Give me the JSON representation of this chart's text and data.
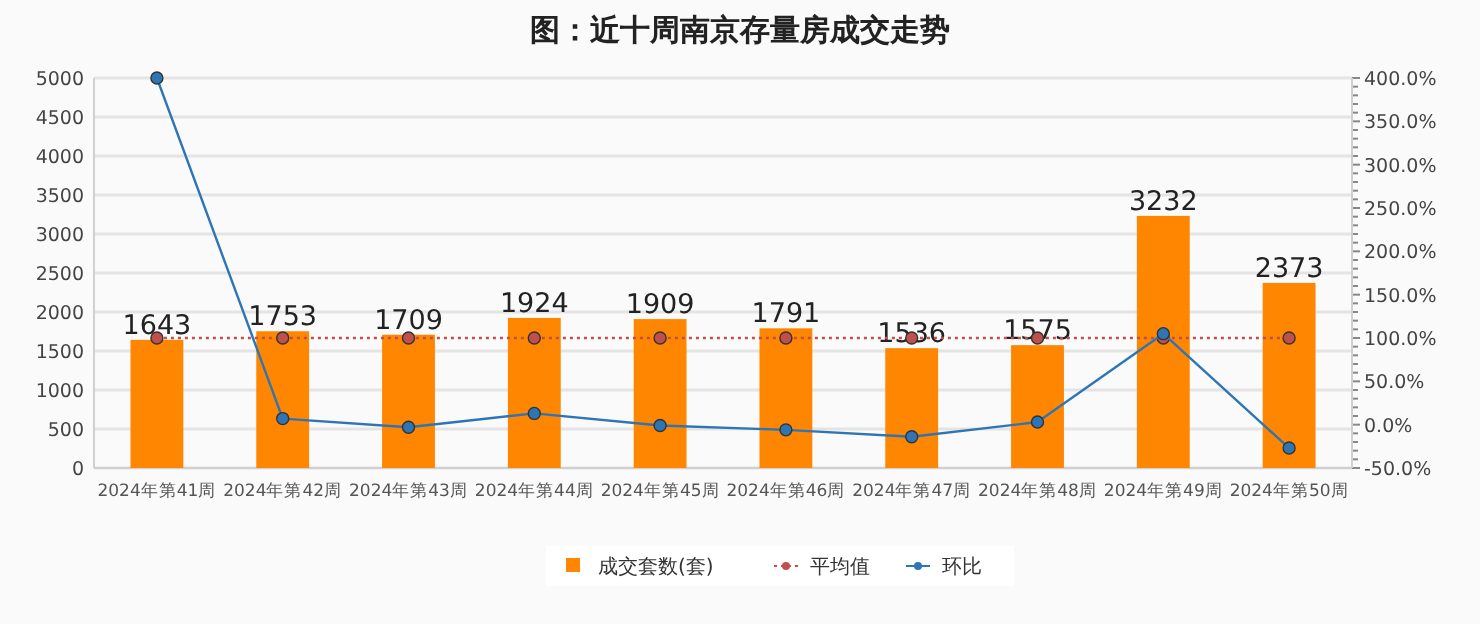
{
  "chart_data": {
    "type": "bar",
    "title": "图：近十周南京存量房成交走势",
    "categories": [
      "2024年第41周",
      "2024年第42周",
      "2024年第43周",
      "2024年第44周",
      "2024年第45周",
      "2024年第46周",
      "2024年第47周",
      "2024年第48周",
      "2024年第49周",
      "2024年第50周"
    ],
    "series": [
      {
        "name": "成交套数(套)",
        "color": "#ff8600",
        "values": [
          1643,
          1753,
          1709,
          1924,
          1909,
          1791,
          1536,
          1575,
          3232,
          2373
        ],
        "value_labels": [
          "1643",
          "1753",
          "1709",
          "1924",
          "1909",
          "1791",
          "1536",
          "1575",
          "3232",
          "2373"
        ]
      },
      {
        "name": "平均值",
        "type": "line",
        "axis": "y2",
        "color": "#c0504d",
        "marker": "circle",
        "line_style": "dotted",
        "values": [
          100,
          100,
          100,
          100,
          100,
          100,
          100,
          100,
          100,
          100
        ]
      },
      {
        "name": "环比",
        "type": "line",
        "axis": "y2",
        "color": "#2e75b6",
        "marker": "circle",
        "line_style": "solid",
        "values": [
          400,
          7,
          -3,
          13,
          -1,
          -6,
          -14,
          3,
          105,
          -27
        ]
      }
    ],
    "ylim": [
      0,
      5000
    ],
    "yticks": [
      0,
      500,
      1000,
      1500,
      2000,
      2500,
      3000,
      3500,
      4000,
      4500,
      5000
    ],
    "y2lim": [
      -50,
      400
    ],
    "y2ticks": [
      {
        "value": -50,
        "label": "-50.0%"
      },
      {
        "value": 0,
        "label": "0.0%"
      },
      {
        "value": 50,
        "label": "50.0%"
      },
      {
        "value": 100,
        "label": "100.0%"
      },
      {
        "value": 150,
        "label": "150.0%"
      },
      {
        "value": 200,
        "label": "200.0%"
      },
      {
        "value": 250,
        "label": "250.0%"
      },
      {
        "value": 300,
        "label": "300.0%"
      },
      {
        "value": 350,
        "label": "350.0%"
      },
      {
        "value": 400,
        "label": "400.0%"
      }
    ],
    "grid": "y",
    "legend": "bottom"
  }
}
